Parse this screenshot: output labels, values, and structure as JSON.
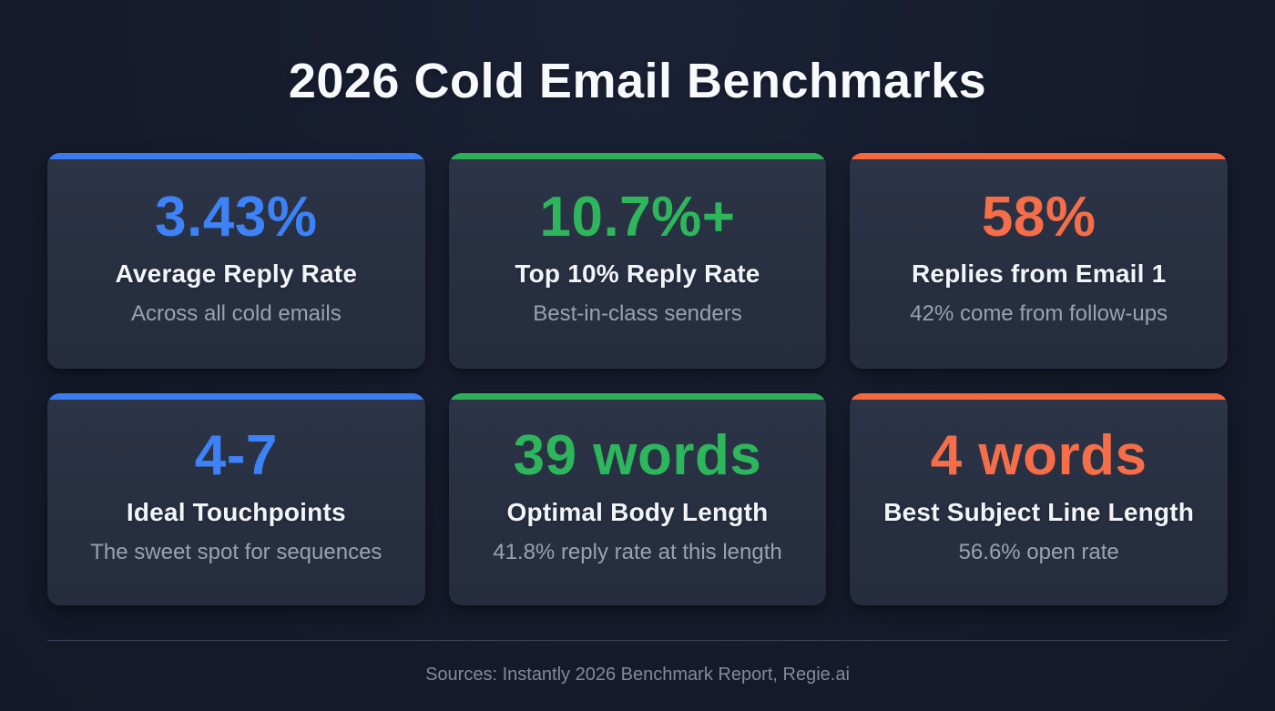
{
  "title": "2026 Cold Email Benchmarks",
  "colors": {
    "background": "#161c2d",
    "card_background": "#2a3244",
    "accent_blue": "#3d82f6",
    "accent_green": "#2db65c",
    "accent_orange": "#f66e49",
    "label_text": "#f2f4f8",
    "sublabel_text": "#9aa2b1"
  },
  "cards": [
    {
      "value": "3.43%",
      "label": "Average Reply Rate",
      "sublabel": "Across all cold emails",
      "accent": "blue",
      "accent_color": "#3d82f6"
    },
    {
      "value": "10.7%+",
      "label": "Top 10% Reply Rate",
      "sublabel": "Best-in-class senders",
      "accent": "green",
      "accent_color": "#2db65c"
    },
    {
      "value": "58%",
      "label": "Replies from Email 1",
      "sublabel": "42% come from follow-ups",
      "accent": "orange",
      "accent_color": "#f66e49"
    },
    {
      "value": "4-7",
      "label": "Ideal Touchpoints",
      "sublabel": "The sweet spot for sequences",
      "accent": "blue",
      "accent_color": "#3d82f6"
    },
    {
      "value": "39 words",
      "label": "Optimal Body Length",
      "sublabel": "41.8% reply rate at this length",
      "accent": "green",
      "accent_color": "#2db65c"
    },
    {
      "value": "4 words",
      "label": "Best Subject Line Length",
      "sublabel": "56.6% open rate",
      "accent": "orange",
      "accent_color": "#f66e49"
    }
  ],
  "footer": {
    "source_text": "Sources: Instantly 2026 Benchmark Report, Regie.ai"
  },
  "chart_data": {
    "type": "table",
    "title": "2026 Cold Email Benchmarks",
    "columns": [
      "Metric",
      "Value",
      "Context"
    ],
    "rows": [
      [
        "Average Reply Rate",
        "3.43%",
        "Across all cold emails"
      ],
      [
        "Top 10% Reply Rate",
        "10.7%+",
        "Best-in-class senders"
      ],
      [
        "Replies from Email 1",
        "58%",
        "42% come from follow-ups"
      ],
      [
        "Ideal Touchpoints",
        "4-7",
        "The sweet spot for sequences"
      ],
      [
        "Optimal Body Length",
        "39 words",
        "41.8% reply rate at this length"
      ],
      [
        "Best Subject Line Length",
        "4 words",
        "56.6% open rate"
      ]
    ],
    "source": "Sources: Instantly 2026 Benchmark Report, Regie.ai"
  }
}
